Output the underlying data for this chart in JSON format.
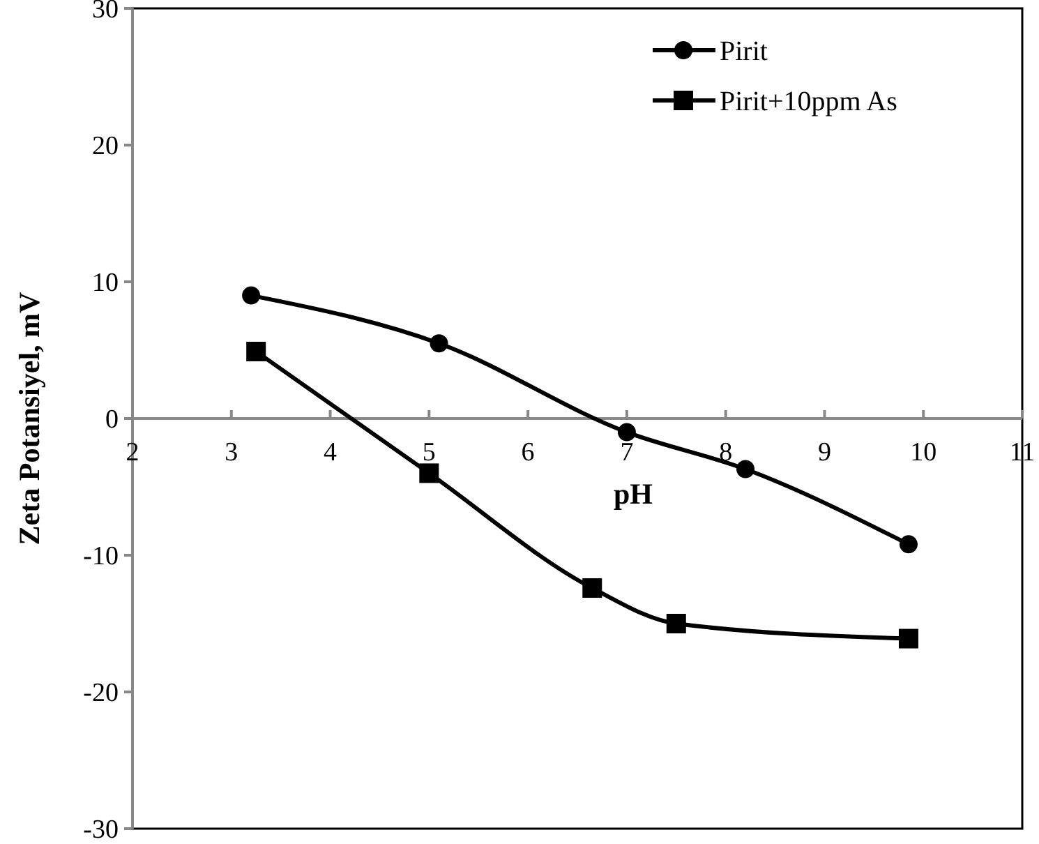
{
  "chart_data": {
    "type": "line",
    "xlabel": "pH",
    "ylabel": "Zeta Potansiyel, mV",
    "xlim": [
      2,
      11
    ],
    "xticks": [
      2,
      3,
      4,
      5,
      6,
      7,
      8,
      9,
      10,
      11
    ],
    "ylim": [
      -30,
      30
    ],
    "yticks": [
      -30,
      -20,
      -10,
      0,
      10,
      20,
      30
    ],
    "grid": false,
    "legend": "top right",
    "marker": "circle",
    "line_style": "solid",
    "series": [
      {
        "name": "Pirit",
        "color": "#000000",
        "x": [
          3.2,
          5.1,
          7.0,
          8.2,
          9.85
        ],
        "values": [
          9.0,
          5.5,
          -1.0,
          -3.7,
          -9.2
        ]
      },
      {
        "name": "Pirit+10ppm As",
        "color": "#000000",
        "marker": "square",
        "x": [
          3.25,
          5.0,
          6.65,
          7.5,
          9.85
        ],
        "values": [
          4.9,
          -4.0,
          -12.4,
          -15.0,
          -16.1
        ]
      }
    ]
  }
}
